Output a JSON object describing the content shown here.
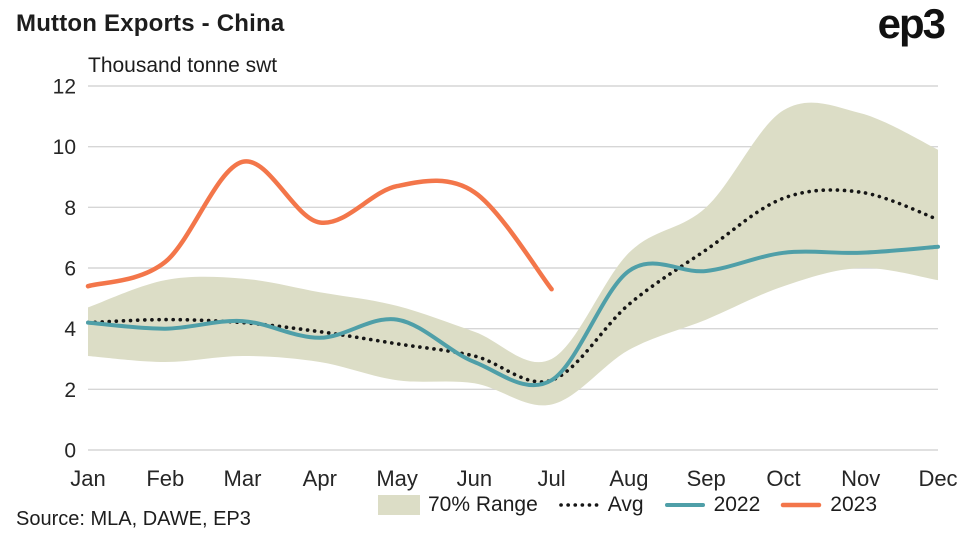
{
  "header": {
    "title": "Mutton Exports - China",
    "logo": "ep3"
  },
  "footer": {
    "source": "Source: MLA, DAWE, EP3"
  },
  "chart_data": {
    "type": "line",
    "title": "Mutton Exports - China",
    "subtitle": "Thousand tonne swt",
    "x": [
      "Jan",
      "Feb",
      "Mar",
      "Apr",
      "May",
      "Jun",
      "Jul",
      "Aug",
      "Sep",
      "Oct",
      "Nov",
      "Dec"
    ],
    "ylim": [
      0,
      12
    ],
    "yticks": [
      0,
      2,
      4,
      6,
      8,
      10,
      12
    ],
    "grid": "horizontal",
    "legend_position": "bottom",
    "colors": {
      "gridline": "#d6d6d6",
      "axis_text": "#262626"
    },
    "band": {
      "name": "70% Range",
      "color": "#dcddc6",
      "upper": [
        4.7,
        5.6,
        5.65,
        5.2,
        4.75,
        3.9,
        3.0,
        6.5,
        8.0,
        11.2,
        11.1,
        9.9
      ],
      "lower": [
        3.1,
        2.9,
        3.1,
        2.9,
        2.3,
        2.2,
        1.5,
        3.3,
        4.3,
        5.4,
        6.0,
        5.6
      ]
    },
    "series": [
      {
        "name": "Avg",
        "style": "dotted",
        "color": "#151515",
        "width": 3.6,
        "values": [
          4.2,
          4.3,
          4.2,
          3.9,
          3.5,
          3.1,
          2.3,
          4.8,
          6.6,
          8.3,
          8.5,
          7.6
        ]
      },
      {
        "name": "2022",
        "style": "solid",
        "color": "#4f9fa8",
        "width": 4,
        "values": [
          4.2,
          4.0,
          4.25,
          3.7,
          4.3,
          2.9,
          2.3,
          5.9,
          5.9,
          6.5,
          6.5,
          6.7
        ]
      },
      {
        "name": "2023",
        "style": "solid",
        "color": "#f3764a",
        "width": 4.5,
        "values": [
          5.4,
          6.2,
          9.5,
          7.5,
          8.7,
          8.5,
          5.3,
          null,
          null,
          null,
          null,
          null
        ]
      }
    ]
  }
}
